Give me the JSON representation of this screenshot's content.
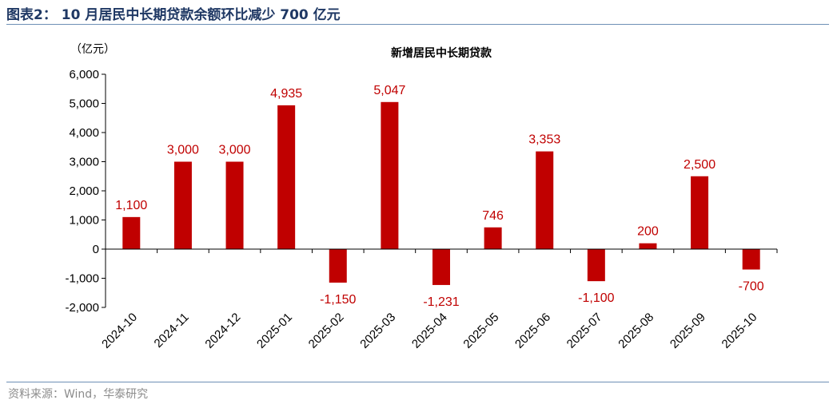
{
  "figure": {
    "title": "图表2：  10 月居民中长期贷款余额环比减少 700 亿元",
    "source": "资料来源：Wind，华泰研究"
  },
  "colors": {
    "bar": "#c00000",
    "rule": "#6d8fb5",
    "title": "#1f3864"
  },
  "chart_data": {
    "type": "bar",
    "title": "新增居民中长期贷款",
    "unit": "（亿元）",
    "categories": [
      "2024-10",
      "2024-11",
      "2024-12",
      "2025-01",
      "2025-02",
      "2025-03",
      "2025-04",
      "2025-05",
      "2025-06",
      "2025-07",
      "2025-08",
      "2025-09",
      "2025-10"
    ],
    "values": [
      1100,
      3000,
      3000,
      4935,
      -1150,
      5047,
      -1231,
      746,
      3353,
      -1100,
      200,
      2500,
      -700
    ],
    "value_labels": [
      "1,100",
      "3,000",
      "3,000",
      "4,935",
      "-1,150",
      "5,047",
      "-1,231",
      "746",
      "3,353",
      "-1,100",
      "200",
      "2,500",
      "-700"
    ],
    "ylim": [
      -2000,
      6000
    ],
    "yticks": [
      6000,
      5000,
      4000,
      3000,
      2000,
      1000,
      0,
      -1000,
      -2000
    ],
    "ytick_labels": [
      "6,000",
      "5,000",
      "4,000",
      "3,000",
      "2,000",
      "1,000",
      "0",
      "-1,000",
      "-2,000"
    ],
    "grid": false,
    "legend": "none"
  }
}
